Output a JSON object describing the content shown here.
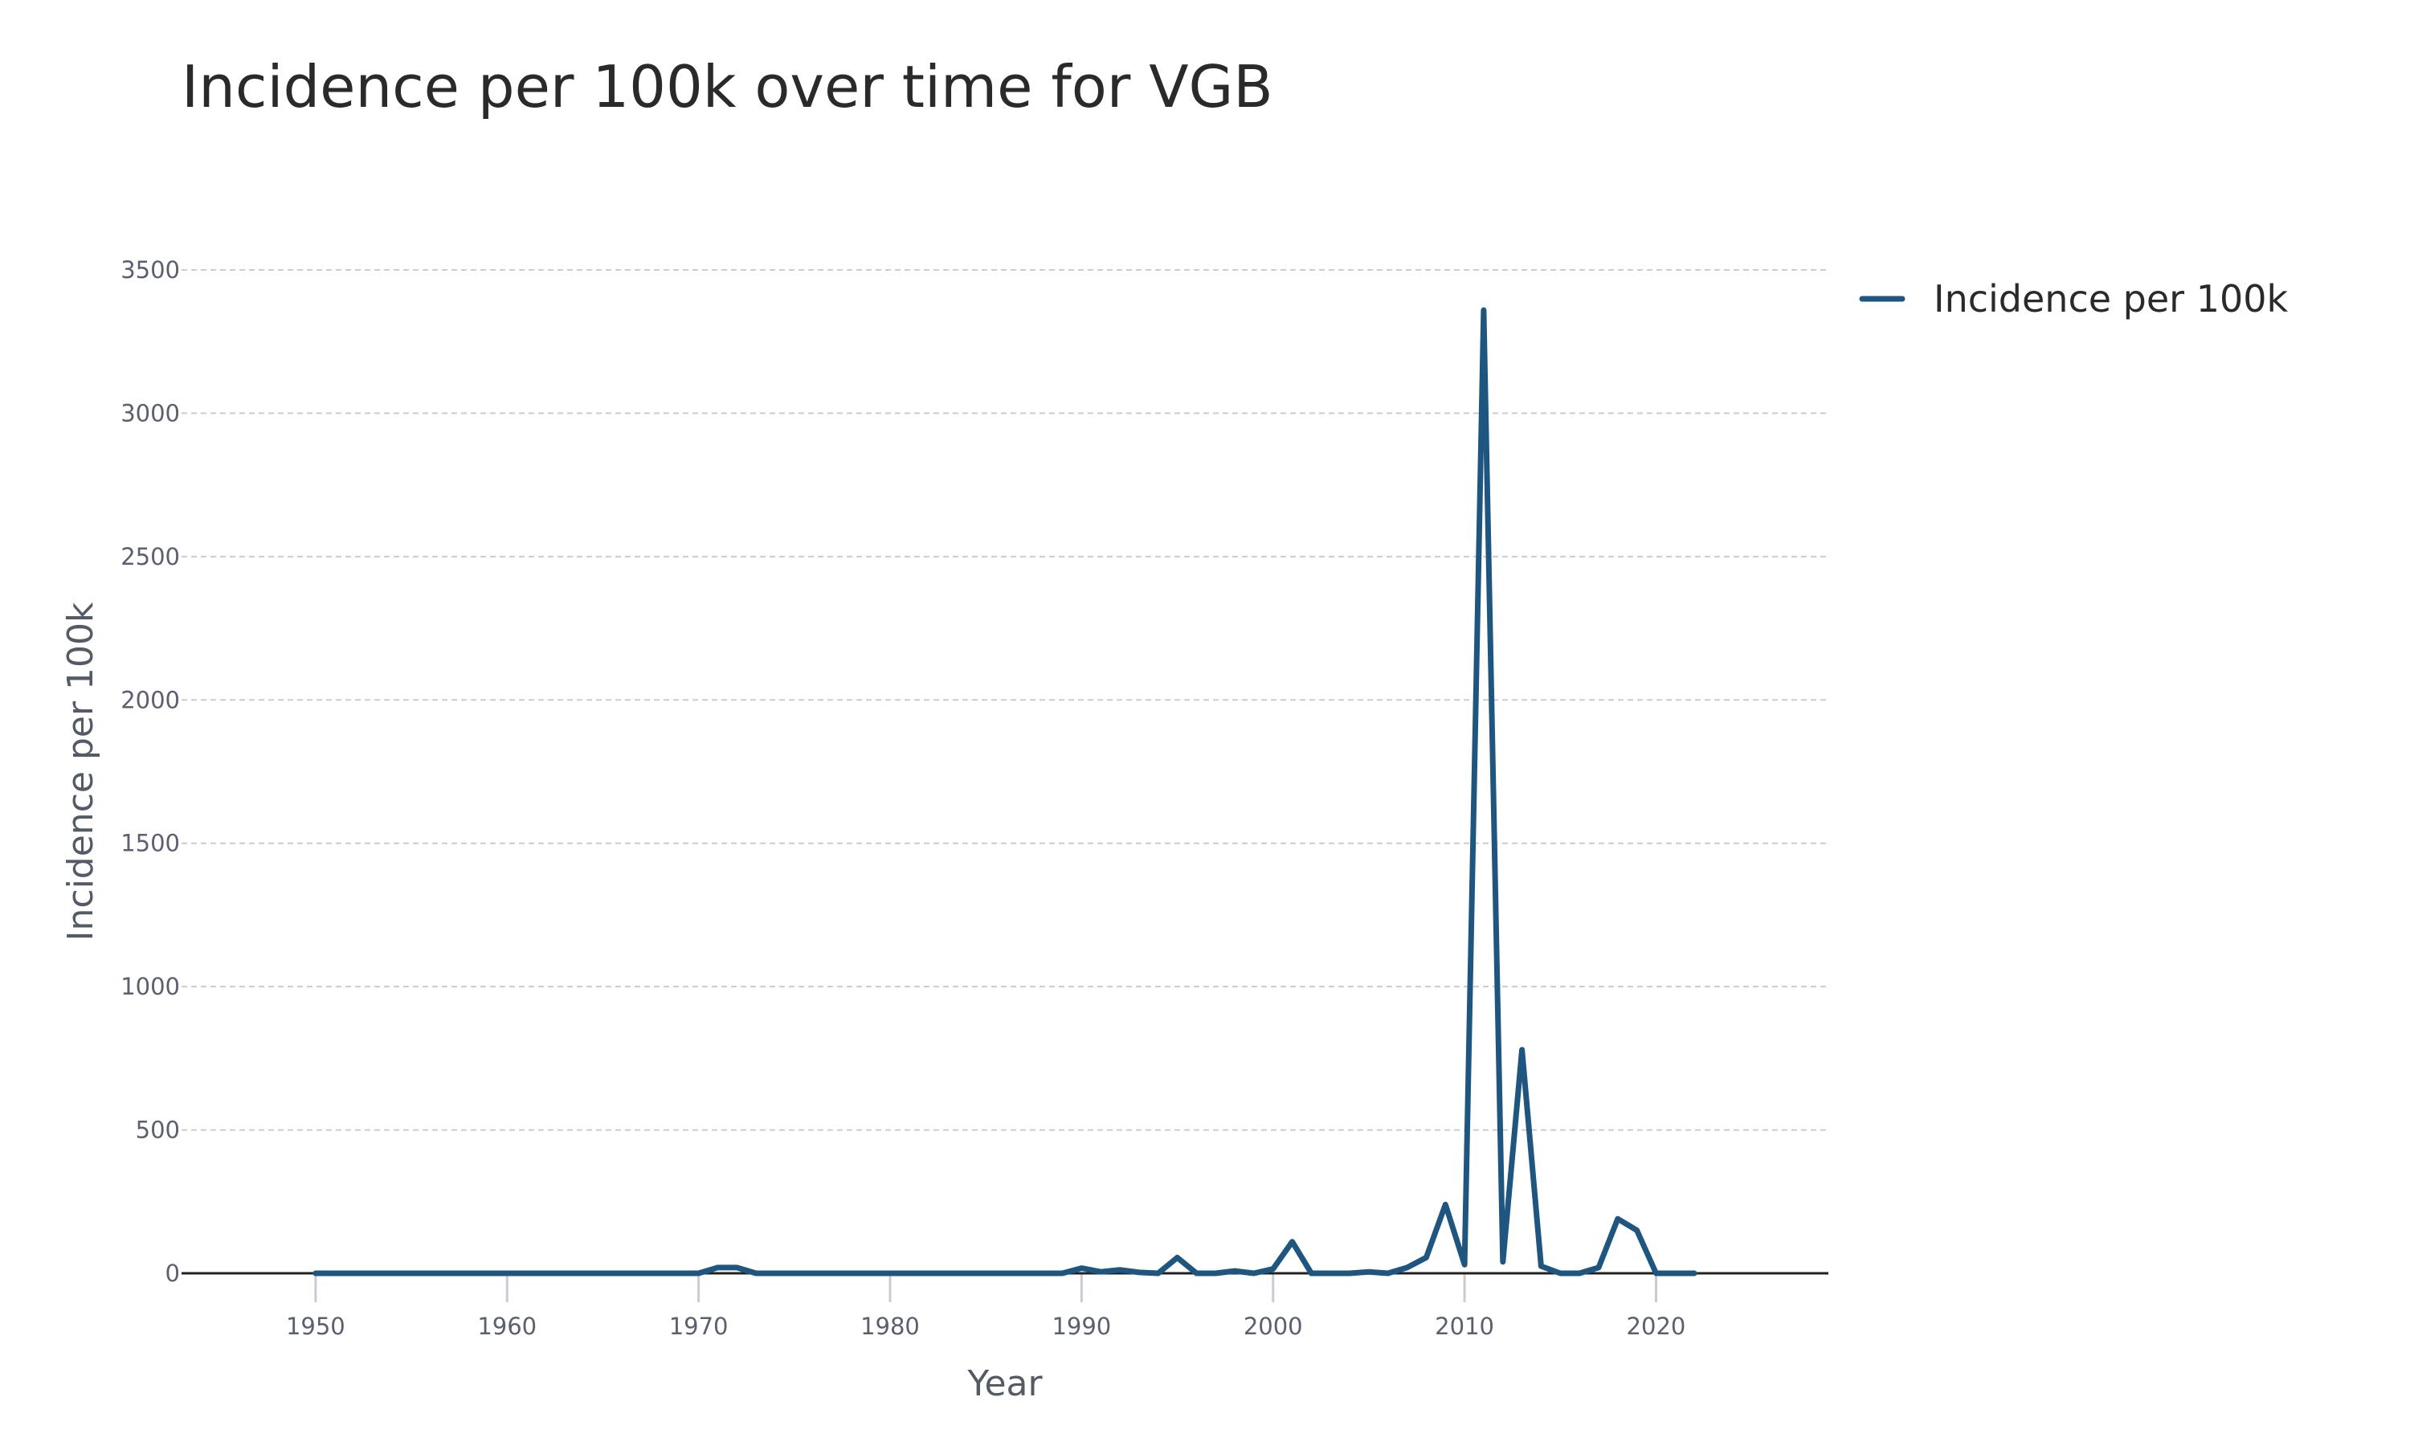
{
  "chart_data": {
    "type": "line",
    "title": "Incidence per 100k over time for VGB",
    "xlabel": "Year",
    "ylabel": "Incidence per 100k",
    "xlim": [
      1943,
      2029
    ],
    "ylim": [
      0,
      3500
    ],
    "x_ticks": [
      1950,
      1960,
      1970,
      1980,
      1990,
      2000,
      2010,
      2020
    ],
    "y_ticks": [
      0,
      500,
      1000,
      1500,
      2000,
      2500,
      3000,
      3500
    ],
    "grid": "horizontal dashed",
    "legend_position": "top-right",
    "line_color": "#1f5680",
    "series": [
      {
        "name": "Incidence per 100k",
        "x": [
          1950,
          1951,
          1952,
          1953,
          1954,
          1955,
          1956,
          1957,
          1958,
          1959,
          1960,
          1961,
          1962,
          1963,
          1964,
          1965,
          1966,
          1967,
          1968,
          1969,
          1970,
          1971,
          1972,
          1973,
          1974,
          1975,
          1976,
          1977,
          1978,
          1979,
          1980,
          1981,
          1982,
          1983,
          1984,
          1985,
          1986,
          1987,
          1988,
          1989,
          1990,
          1991,
          1992,
          1993,
          1994,
          1995,
          1996,
          1997,
          1998,
          1999,
          2000,
          2001,
          2002,
          2003,
          2004,
          2005,
          2006,
          2007,
          2008,
          2009,
          2010,
          2011,
          2012,
          2013,
          2014,
          2015,
          2016,
          2017,
          2018,
          2019,
          2020,
          2021,
          2022
        ],
        "values": [
          0,
          0,
          0,
          0,
          0,
          0,
          0,
          0,
          0,
          0,
          0,
          0,
          0,
          0,
          0,
          0,
          0,
          0,
          0,
          0,
          0,
          20,
          20,
          0,
          0,
          0,
          0,
          0,
          0,
          0,
          0,
          0,
          0,
          0,
          0,
          0,
          0,
          0,
          0,
          0,
          18,
          5,
          12,
          3,
          0,
          55,
          0,
          0,
          8,
          0,
          15,
          110,
          0,
          0,
          0,
          5,
          0,
          20,
          55,
          240,
          30,
          3360,
          40,
          780,
          25,
          0,
          0,
          20,
          190,
          150,
          0,
          0,
          0
        ]
      }
    ]
  }
}
